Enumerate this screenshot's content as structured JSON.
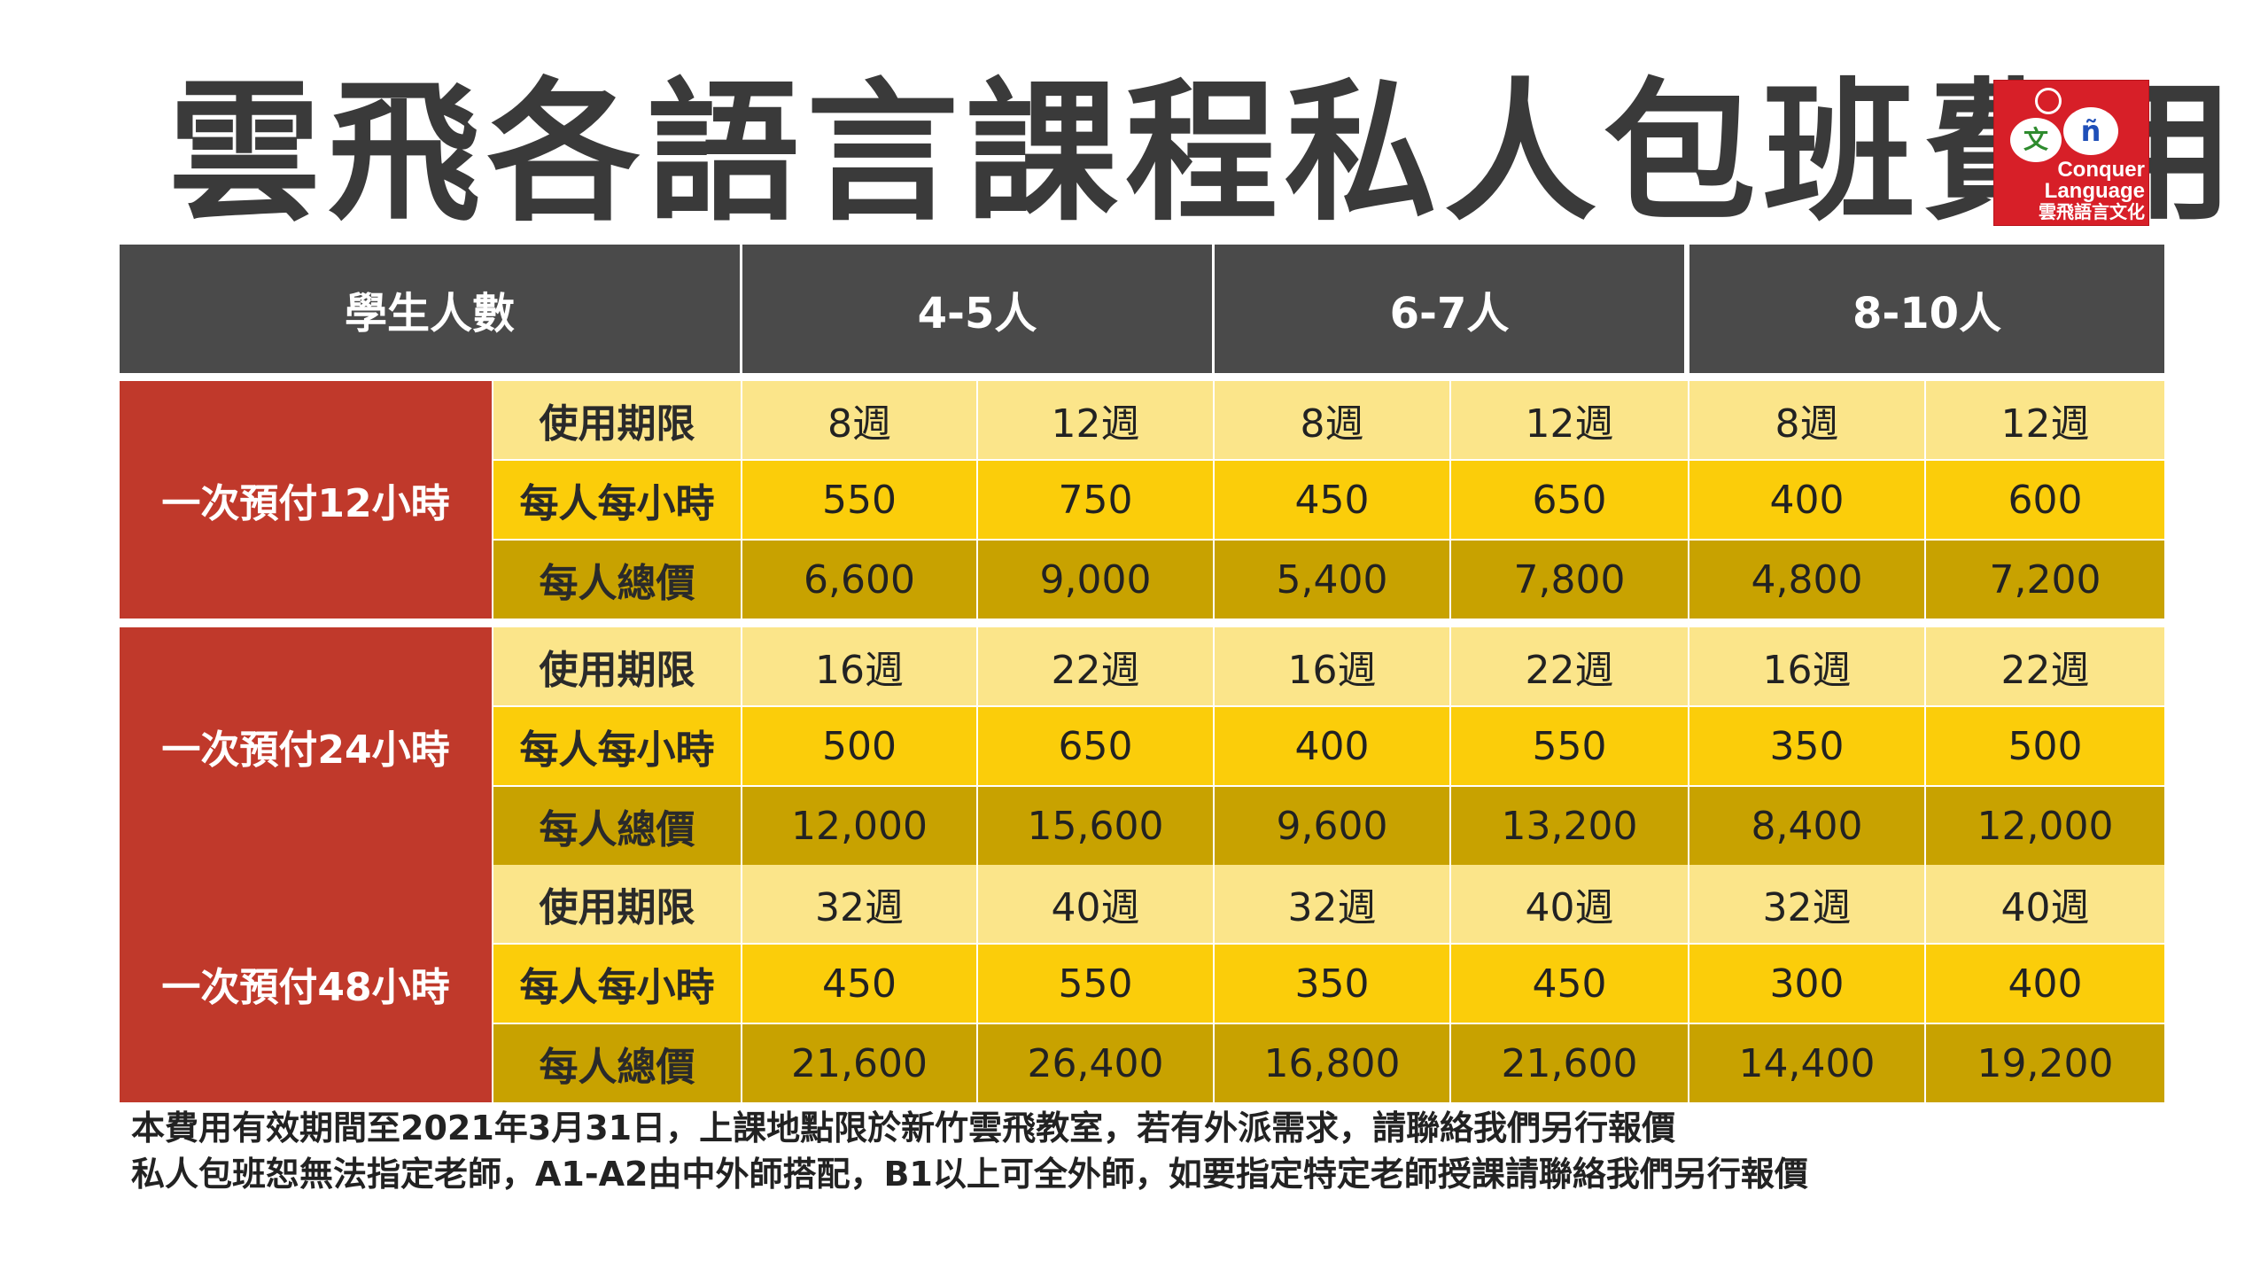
{
  "title": "雲飛各語言課程私人包班費用",
  "logo": {
    "char1": "文",
    "char2": "ñ",
    "line1": "Conquer",
    "line2": "Language",
    "line3": "雲飛語言文化"
  },
  "header": {
    "students": "學生人數",
    "cols": [
      "4-5人",
      "6-7人",
      "8-10人"
    ]
  },
  "row_labels": {
    "validity": "使用期限",
    "per_hour": "每人每小時",
    "total": "每人總價"
  },
  "groups": [
    {
      "label": "一次預付12小時",
      "validity": [
        "8週",
        "12週",
        "8週",
        "12週",
        "8週",
        "12週"
      ],
      "per_hour": [
        "550",
        "750",
        "450",
        "650",
        "400",
        "600"
      ],
      "total": [
        "6,600",
        "9,000",
        "5,400",
        "7,800",
        "4,800",
        "7,200"
      ]
    },
    {
      "label": "一次預付24小時",
      "validity": [
        "16週",
        "22週",
        "16週",
        "22週",
        "16週",
        "22週"
      ],
      "per_hour": [
        "500",
        "650",
        "400",
        "550",
        "350",
        "500"
      ],
      "total": [
        "12,000",
        "15,600",
        "9,600",
        "13,200",
        "8,400",
        "12,000"
      ]
    },
    {
      "label": "一次預付48小時",
      "validity": [
        "32週",
        "40週",
        "32週",
        "40週",
        "32週",
        "40週"
      ],
      "per_hour": [
        "450",
        "550",
        "350",
        "450",
        "300",
        "400"
      ],
      "total": [
        "21,600",
        "26,400",
        "16,800",
        "21,600",
        "14,400",
        "19,200"
      ]
    }
  ],
  "footer": {
    "line1": "本費用有效期間至2021年3月31日，上課地點限於新竹雲飛教室，若有外派需求，請聯絡我們另行報價",
    "line2": "私人包班恕無法指定老師，A1-A2由中外師搭配，B1以上可全外師，如要指定特定老師授課請聯絡我們另行報價"
  },
  "colors": {
    "header": "#4a4a4a",
    "group": "#c0392b",
    "row_light": "#fbe58a",
    "row_mid": "#fbcd0a",
    "row_dark": "#c8a200"
  }
}
